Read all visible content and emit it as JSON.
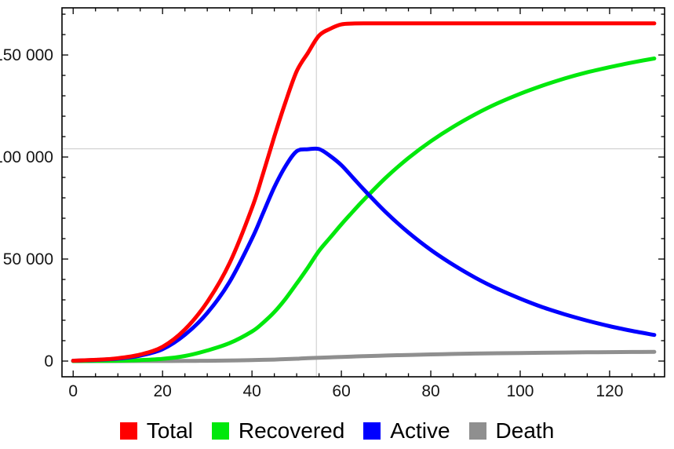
{
  "figure": {
    "background": "#ffffff",
    "frame_color": "#000000",
    "tick_label_color": "#151515"
  },
  "chart_data": {
    "type": "line",
    "title": "",
    "xlabel": "",
    "ylabel": "",
    "xlim": [
      -2.5,
      132.3
    ],
    "ylim": [
      -7700,
      173100
    ],
    "grid": true,
    "gridlines": {
      "v": [
        54.4
      ],
      "h": [
        104000
      ],
      "color": "#c9c9c9"
    },
    "x_ticks": {
      "major": [
        0,
        20,
        40,
        60,
        80,
        100,
        120
      ],
      "labels": [
        "0",
        "20",
        "40",
        "60",
        "80",
        "100",
        "120"
      ],
      "minor_step": 5,
      "minor_range": [
        0,
        130
      ]
    },
    "y_ticks": {
      "major": [
        0,
        50000,
        100000,
        150000
      ],
      "labels": [
        "0",
        "50 000",
        "100 000",
        "150 000"
      ],
      "minor_step": 10000,
      "minor_range": [
        0,
        170000
      ]
    },
    "legend_position": "bottom",
    "x": [
      0,
      5,
      10,
      15,
      20,
      25,
      30,
      35,
      40,
      42.5,
      45,
      47.5,
      50,
      52.5,
      55,
      57.5,
      60,
      62.5,
      65,
      70,
      75,
      80,
      85,
      90,
      95,
      100,
      105,
      110,
      115,
      120,
      125,
      130
    ],
    "series": [
      {
        "name": "Death",
        "color": "#8f8f8f",
        "values": [
          0,
          2,
          6,
          15,
          34,
          75,
          157,
          270,
          440,
          600,
          730,
          950,
          1150,
          1400,
          1640,
          1830,
          2030,
          2210,
          2400,
          2730,
          3010,
          3260,
          3480,
          3670,
          3830,
          3970,
          4090,
          4200,
          4290,
          4370,
          4440,
          4500
        ]
      },
      {
        "name": "Recovered",
        "color": "#00e80c",
        "values": [
          0,
          60,
          200,
          500,
          1100,
          2500,
          5200,
          8800,
          14500,
          18800,
          24000,
          30500,
          38000,
          45800,
          54000,
          60500,
          67000,
          73100,
          79000,
          90000,
          99500,
          107700,
          114800,
          121000,
          126400,
          131000,
          135000,
          138500,
          141500,
          144000,
          146300,
          148300
        ]
      },
      {
        "name": "Active",
        "color": "#0000ff",
        "values": [
          200,
          540,
          1200,
          2700,
          5850,
          12900,
          23600,
          38800,
          60000,
          72600,
          85200,
          95500,
          102800,
          103800,
          103900,
          100500,
          96000,
          90100,
          84100,
          72800,
          63000,
          54500,
          47200,
          40800,
          35300,
          30600,
          26400,
          22900,
          19800,
          17100,
          14800,
          12800
        ]
      },
      {
        "name": "Total",
        "color": "#ff0000",
        "values": [
          200,
          600,
          1400,
          3200,
          7000,
          15500,
          29000,
          48000,
          75000,
          92000,
          110000,
          126950,
          142000,
          151000,
          159500,
          162830,
          165000,
          165410,
          165500,
          165500,
          165500,
          165500,
          165500,
          165500,
          165500,
          165500,
          165500,
          165500,
          165500,
          165500,
          165500,
          165500
        ]
      }
    ],
    "legend_order": [
      "Total",
      "Recovered",
      "Active",
      "Death"
    ]
  }
}
